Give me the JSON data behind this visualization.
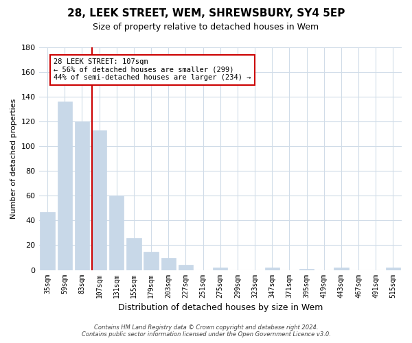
{
  "title": "28, LEEK STREET, WEM, SHREWSBURY, SY4 5EP",
  "subtitle": "Size of property relative to detached houses in Wem",
  "xlabel": "Distribution of detached houses by size in Wem",
  "ylabel": "Number of detached properties",
  "bar_labels": [
    "35sqm",
    "59sqm",
    "83sqm",
    "107sqm",
    "131sqm",
    "155sqm",
    "179sqm",
    "203sqm",
    "227sqm",
    "251sqm",
    "275sqm",
    "299sqm",
    "323sqm",
    "347sqm",
    "371sqm",
    "395sqm",
    "419sqm",
    "443sqm",
    "467sqm",
    "491sqm",
    "515sqm"
  ],
  "bar_values": [
    47,
    136,
    120,
    113,
    60,
    26,
    15,
    10,
    4,
    0,
    2,
    0,
    0,
    2,
    0,
    1,
    0,
    2,
    0,
    0,
    2
  ],
  "bar_color": "#c8d8e8",
  "vline_index": 3,
  "vline_color": "#cc0000",
  "ylim": [
    0,
    180
  ],
  "yticks": [
    0,
    20,
    40,
    60,
    80,
    100,
    120,
    140,
    160,
    180
  ],
  "annotation_text": "28 LEEK STREET: 107sqm\n← 56% of detached houses are smaller (299)\n44% of semi-detached houses are larger (234) →",
  "annotation_box_edge": "#cc0000",
  "footer_line1": "Contains HM Land Registry data © Crown copyright and database right 2024.",
  "footer_line2": "Contains public sector information licensed under the Open Government Licence v3.0.",
  "background_color": "#ffffff",
  "grid_color": "#d0dce8"
}
